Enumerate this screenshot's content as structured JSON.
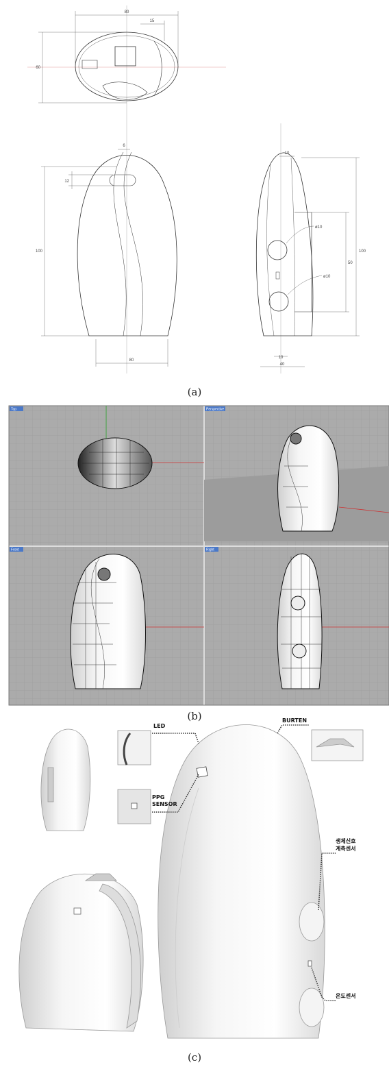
{
  "panel_a": {
    "caption": "(a)",
    "top_view": {
      "width": "80",
      "offset": "15",
      "height": "60"
    },
    "front_view": {
      "top": "6",
      "slot": "12",
      "height": "100",
      "width": "80"
    },
    "side_view": {
      "top": "10",
      "height": "100",
      "sensor_span": "50",
      "hole_1": "ø10",
      "hole_2": "ø10",
      "bottom_inner": "10",
      "width": "40"
    }
  },
  "panel_b": {
    "caption": "(b)",
    "viewports": [
      "Top",
      "Perspective",
      "Front",
      "Right"
    ]
  },
  "panel_c": {
    "caption": "(c)",
    "callouts": {
      "led": "LED",
      "ppg": [
        "PPG",
        "SENSOR"
      ],
      "burten": "BURTEN",
      "bio_sensor": [
        "생체신호",
        "계측센서"
      ],
      "temp_sensor": "온도센서"
    }
  }
}
